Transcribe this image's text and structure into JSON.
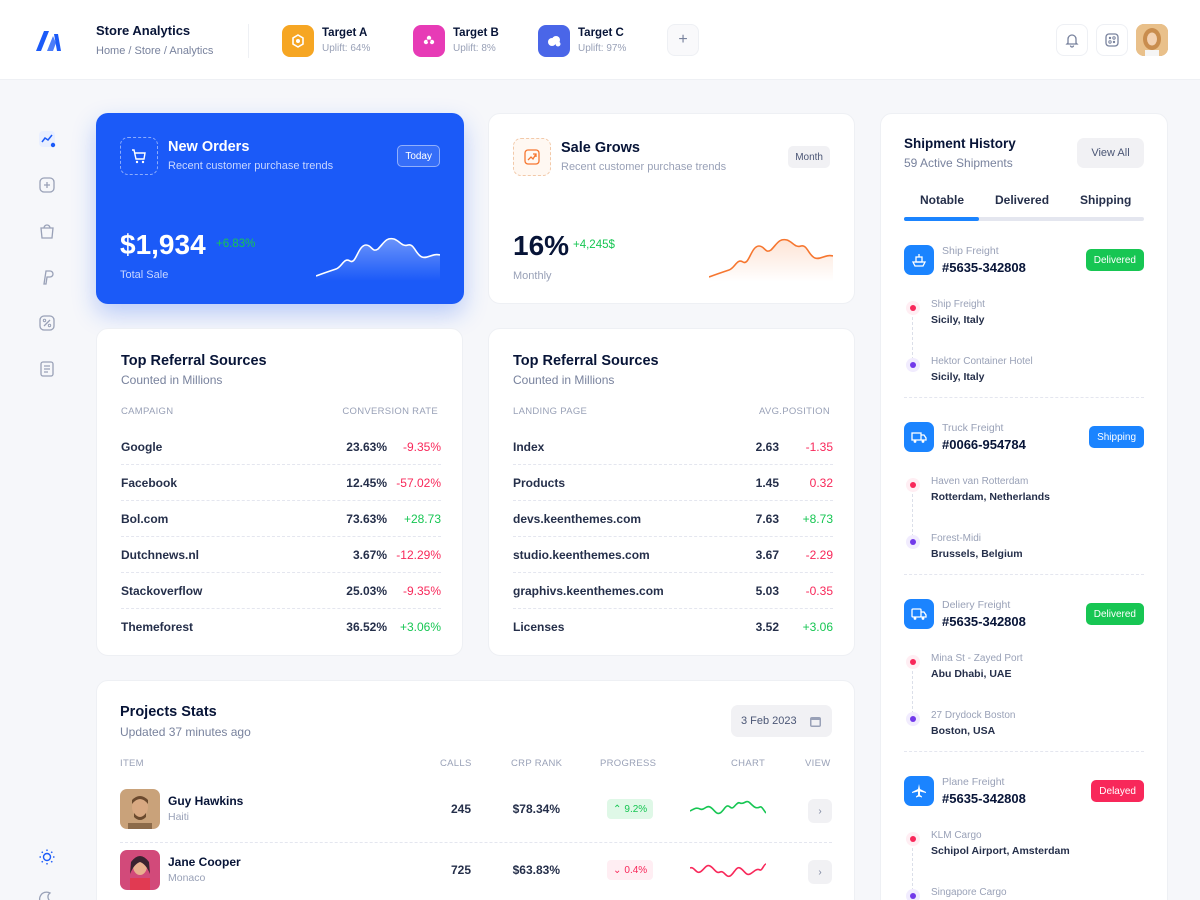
{
  "header": {
    "title": "Store Analytics",
    "breadcrumb": "Home / Store / Analytics",
    "targets": [
      {
        "name": "Target A",
        "uplift": "Uplift: 64%",
        "color": "#f6a623"
      },
      {
        "name": "Target B",
        "uplift": "Uplift: 8%",
        "color": "#e73bb6"
      },
      {
        "name": "Target C",
        "uplift": "Uplift: 97%",
        "color": "#4a66e8"
      }
    ],
    "add_label": "+"
  },
  "new_orders": {
    "title": "New Orders",
    "subtitle": "Recent customer purchase trends",
    "period": "Today",
    "amount": "$1,934",
    "change": "+6.83%",
    "caption": "Total Sale"
  },
  "sale_grows": {
    "title": "Sale Grows",
    "subtitle": "Recent customer purchase trends",
    "period": "Month",
    "amount": "16%",
    "change": "+4,245$",
    "caption": "Monthly"
  },
  "referral_left": {
    "title": "Top Referral Sources",
    "subtitle": "Counted in Millions",
    "col1": "CAMPAIGN",
    "col2": "CONVERSION RATE",
    "rows": [
      {
        "label": "Google",
        "v1": "23.63%",
        "v2": "-9.35%"
      },
      {
        "label": "Facebook",
        "v1": "12.45%",
        "v2": "-57.02%"
      },
      {
        "label": "Bol.com",
        "v1": "73.63%",
        "v2": "+28.73"
      },
      {
        "label": "Dutchnews.nl",
        "v1": "3.67%",
        "v2": "-12.29%"
      },
      {
        "label": "Stackoverflow",
        "v1": "25.03%",
        "v2": "-9.35%"
      },
      {
        "label": "Themeforest",
        "v1": "36.52%",
        "v2": "+3.06%"
      }
    ]
  },
  "referral_right": {
    "title": "Top Referral Sources",
    "subtitle": "Counted in Millions",
    "col1": "LANDING PAGE",
    "col2": "AVG.POSITION",
    "rows": [
      {
        "label": "Index",
        "v1": "2.63",
        "v2": "-1.35"
      },
      {
        "label": "Products",
        "v1": "1.45",
        "v2": "0.32"
      },
      {
        "label": "devs.keenthemes.com",
        "v1": "7.63",
        "v2": "+8.73"
      },
      {
        "label": "studio.keenthemes.com",
        "v1": "3.67",
        "v2": "-2.29"
      },
      {
        "label": "graphivs.keenthemes.com",
        "v1": "5.03",
        "v2": "-0.35"
      },
      {
        "label": "Licenses",
        "v1": "3.52",
        "v2": "+3.06"
      }
    ]
  },
  "projects": {
    "title": "Projects Stats",
    "subtitle": "Updated 37 minutes ago",
    "date": "3 Feb 2023",
    "columns": {
      "item": "ITEM",
      "calls": "CALLS",
      "crp": "CRP RANK",
      "progress": "PROGRESS",
      "chart": "CHART",
      "view": "VIEW"
    },
    "rows": [
      {
        "name": "Guy Hawkins",
        "location": "Haiti",
        "calls": "245",
        "crp": "$78.34%",
        "progress": "9.2%",
        "trend": "up"
      },
      {
        "name": "Jane Cooper",
        "location": "Monaco",
        "calls": "725",
        "crp": "$63.83%",
        "progress": "0.4%",
        "trend": "down"
      }
    ]
  },
  "shipments": {
    "title": "Shipment History",
    "subtitle": "59 Active Shipments",
    "view_all": "View All",
    "tabs": [
      "Notable",
      "Delivered",
      "Shipping"
    ],
    "items": [
      {
        "type": "Ship Freight",
        "id": "#5635-342808",
        "status": "Delivered",
        "status_color": "#17c653",
        "icon": "ship-icon",
        "stops": [
          {
            "name": "Ship Freight",
            "location": "Sicily, Italy"
          },
          {
            "name": "Hektor Container Hotel",
            "location": "Sicily, Italy"
          }
        ]
      },
      {
        "type": "Truck Freight",
        "id": "#0066-954784",
        "status": "Shipping",
        "status_color": "#1b84ff",
        "icon": "truck-icon",
        "stops": [
          {
            "name": "Haven van Rotterdam",
            "location": "Rotterdam, Netherlands"
          },
          {
            "name": "Forest-Midi",
            "location": "Brussels, Belgium"
          }
        ]
      },
      {
        "type": "Deliery Freight",
        "id": "#5635-342808",
        "status": "Delivered",
        "status_color": "#17c653",
        "icon": "delivery-truck-icon",
        "stops": [
          {
            "name": "Mina St - Zayed Port",
            "location": "Abu Dhabi, UAE"
          },
          {
            "name": "27 Drydock Boston",
            "location": "Boston, USA"
          }
        ]
      },
      {
        "type": "Plane Freight",
        "id": "#5635-342808",
        "status": "Delayed",
        "status_color": "#f8285a",
        "icon": "plane-icon",
        "stops": [
          {
            "name": "KLM Cargo",
            "location": "Schipol Airport, Amsterdam"
          },
          {
            "name": "Singapore Cargo",
            "location": ""
          }
        ]
      }
    ]
  }
}
